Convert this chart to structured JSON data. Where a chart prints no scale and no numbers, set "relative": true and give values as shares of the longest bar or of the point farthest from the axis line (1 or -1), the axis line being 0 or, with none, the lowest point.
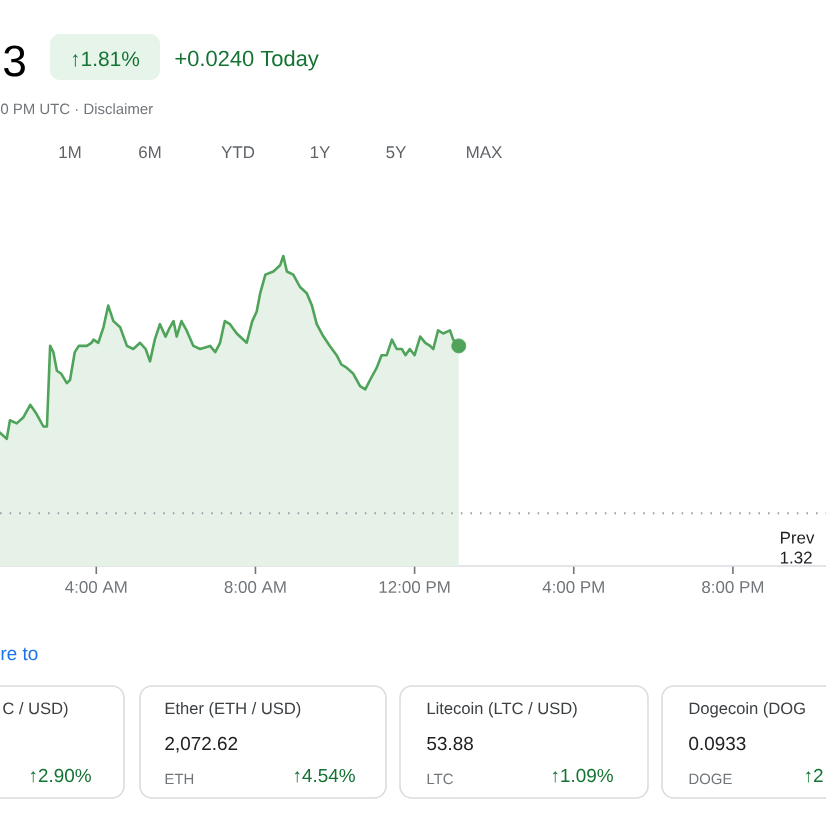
{
  "chart_data": {
    "type": "area",
    "relative": true,
    "xlim": [
      1.58,
      22.34
    ],
    "xticks": [
      {
        "value": 4,
        "label": "4:00 AM"
      },
      {
        "value": 8,
        "label": "8:00 AM"
      },
      {
        "value": 12,
        "label": "12:00 PM"
      },
      {
        "value": 16,
        "label": "4:00 PM"
      },
      {
        "value": 20,
        "label": "8:00 PM"
      }
    ],
    "series": [
      {
        "color": "#4fa35a",
        "x": [
          1.58,
          1.75,
          1.83,
          2.0,
          2.17,
          2.34,
          2.5,
          2.67,
          2.76,
          2.84,
          2.92,
          3.01,
          3.12,
          3.26,
          3.34,
          3.46,
          3.56,
          3.76,
          3.88,
          3.93,
          4.05,
          4.18,
          4.3,
          4.43,
          4.6,
          4.77,
          4.93,
          5.1,
          5.24,
          5.35,
          5.47,
          5.6,
          5.74,
          5.85,
          5.94,
          6.02,
          6.14,
          6.27,
          6.44,
          6.61,
          6.86,
          6.99,
          7.11,
          7.23,
          7.36,
          7.53,
          7.78,
          7.92,
          8.03,
          8.12,
          8.25,
          8.45,
          8.62,
          8.7,
          8.79,
          8.95,
          9.12,
          9.29,
          9.42,
          9.54,
          9.71,
          9.87,
          10.04,
          10.16,
          10.29,
          10.46,
          10.63,
          10.76,
          10.88,
          11.05,
          11.17,
          11.3,
          11.43,
          11.55,
          11.68,
          11.77,
          11.88,
          12.0,
          12.14,
          12.27,
          12.39,
          12.47,
          12.59,
          12.72,
          12.89,
          12.97,
          13.11
        ],
        "values": [
          0.43,
          0.41,
          0.47,
          0.46,
          0.48,
          0.52,
          0.49,
          0.45,
          0.45,
          0.71,
          0.69,
          0.63,
          0.62,
          0.59,
          0.6,
          0.69,
          0.71,
          0.71,
          0.72,
          0.73,
          0.72,
          0.77,
          0.84,
          0.79,
          0.77,
          0.71,
          0.7,
          0.72,
          0.7,
          0.66,
          0.73,
          0.78,
          0.74,
          0.77,
          0.79,
          0.74,
          0.79,
          0.76,
          0.71,
          0.7,
          0.71,
          0.69,
          0.72,
          0.79,
          0.78,
          0.75,
          0.72,
          0.79,
          0.82,
          0.88,
          0.94,
          0.95,
          0.97,
          1.0,
          0.95,
          0.94,
          0.9,
          0.88,
          0.84,
          0.78,
          0.74,
          0.71,
          0.68,
          0.65,
          0.64,
          0.62,
          0.58,
          0.57,
          0.6,
          0.64,
          0.68,
          0.68,
          0.73,
          0.7,
          0.7,
          0.68,
          0.7,
          0.68,
          0.74,
          0.72,
          0.71,
          0.7,
          0.76,
          0.75,
          0.76,
          0.73,
          0.71
        ]
      },
      {
        "type": "scatter",
        "color": "#4fa35a",
        "marker": "circle",
        "x": [
          13.11
        ],
        "values": [
          0.71
        ]
      }
    ],
    "ref_lines": [
      {
        "axis": "y",
        "value": 0.17,
        "label": "Prev 1.32",
        "color": "#9aa0a6",
        "line_style": "dotted"
      }
    ],
    "annotations": [
      "3",
      "↑1.81%",
      "+0.0240 Today",
      "0 PM UTC · Disclaimer",
      "1M",
      "6M",
      "YTD",
      "1Y",
      "5Y",
      "MAX",
      "re to",
      "C / USD)",
      "↑2.90%",
      "Ether (ETH / USD)",
      "2,072.62",
      "ETH",
      "↑4.54%",
      "Litecoin (LTC / USD)",
      "53.88",
      "LTC",
      "↑1.09%",
      "Dogecoin (DOG",
      "0.0933",
      "DOGE",
      "↑2"
    ]
  }
}
